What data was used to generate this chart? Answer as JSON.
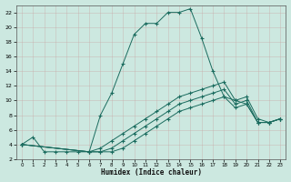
{
  "xlabel": "Humidex (Indice chaleur)",
  "bg_color": "#cce8e0",
  "grid_color": "#b8d8d0",
  "line_color": "#1a6b5e",
  "xlim": [
    -0.5,
    23.5
  ],
  "ylim": [
    2,
    23
  ],
  "xticks": [
    0,
    1,
    2,
    3,
    4,
    5,
    6,
    7,
    8,
    9,
    10,
    11,
    12,
    13,
    14,
    15,
    16,
    17,
    18,
    19,
    20,
    21,
    22,
    23
  ],
  "yticks": [
    2,
    4,
    6,
    8,
    10,
    12,
    14,
    16,
    18,
    20,
    22
  ],
  "series": [
    {
      "x": [
        0,
        1,
        2,
        3,
        4,
        5,
        6,
        7,
        8,
        9,
        10,
        11,
        12,
        13,
        14,
        15,
        16,
        17,
        18,
        19,
        20,
        21,
        22,
        23
      ],
      "y": [
        4,
        5,
        3,
        3,
        3,
        3,
        3,
        8,
        11,
        15,
        19,
        20.5,
        20.5,
        22,
        22,
        22.5,
        18.5,
        14,
        10.5,
        10,
        9.5,
        7,
        7,
        7.5
      ]
    },
    {
      "x": [
        0,
        6,
        7,
        8,
        9,
        10,
        11,
        12,
        13,
        14,
        15,
        16,
        17,
        18,
        19,
        20,
        21,
        22,
        23
      ],
      "y": [
        4,
        3,
        3.5,
        4.5,
        5.5,
        6.5,
        7.5,
        8.5,
        9.5,
        10.5,
        11,
        11.5,
        12,
        12.5,
        10,
        10.5,
        7.5,
        7,
        7.5
      ]
    },
    {
      "x": [
        0,
        6,
        7,
        8,
        9,
        10,
        11,
        12,
        13,
        14,
        15,
        16,
        17,
        18,
        19,
        20,
        21,
        22,
        23
      ],
      "y": [
        4,
        3,
        3,
        3.5,
        4.5,
        5.5,
        6.5,
        7.5,
        8.5,
        9.5,
        10,
        10.5,
        11,
        11.5,
        9.5,
        10,
        7,
        7,
        7.5
      ]
    },
    {
      "x": [
        0,
        6,
        7,
        8,
        9,
        10,
        11,
        12,
        13,
        14,
        15,
        16,
        17,
        18,
        19,
        20,
        21,
        22,
        23
      ],
      "y": [
        4,
        3,
        3,
        3,
        3.5,
        4.5,
        5.5,
        6.5,
        7.5,
        8.5,
        9,
        9.5,
        10,
        10.5,
        9,
        9.5,
        7,
        7,
        7.5
      ]
    }
  ]
}
